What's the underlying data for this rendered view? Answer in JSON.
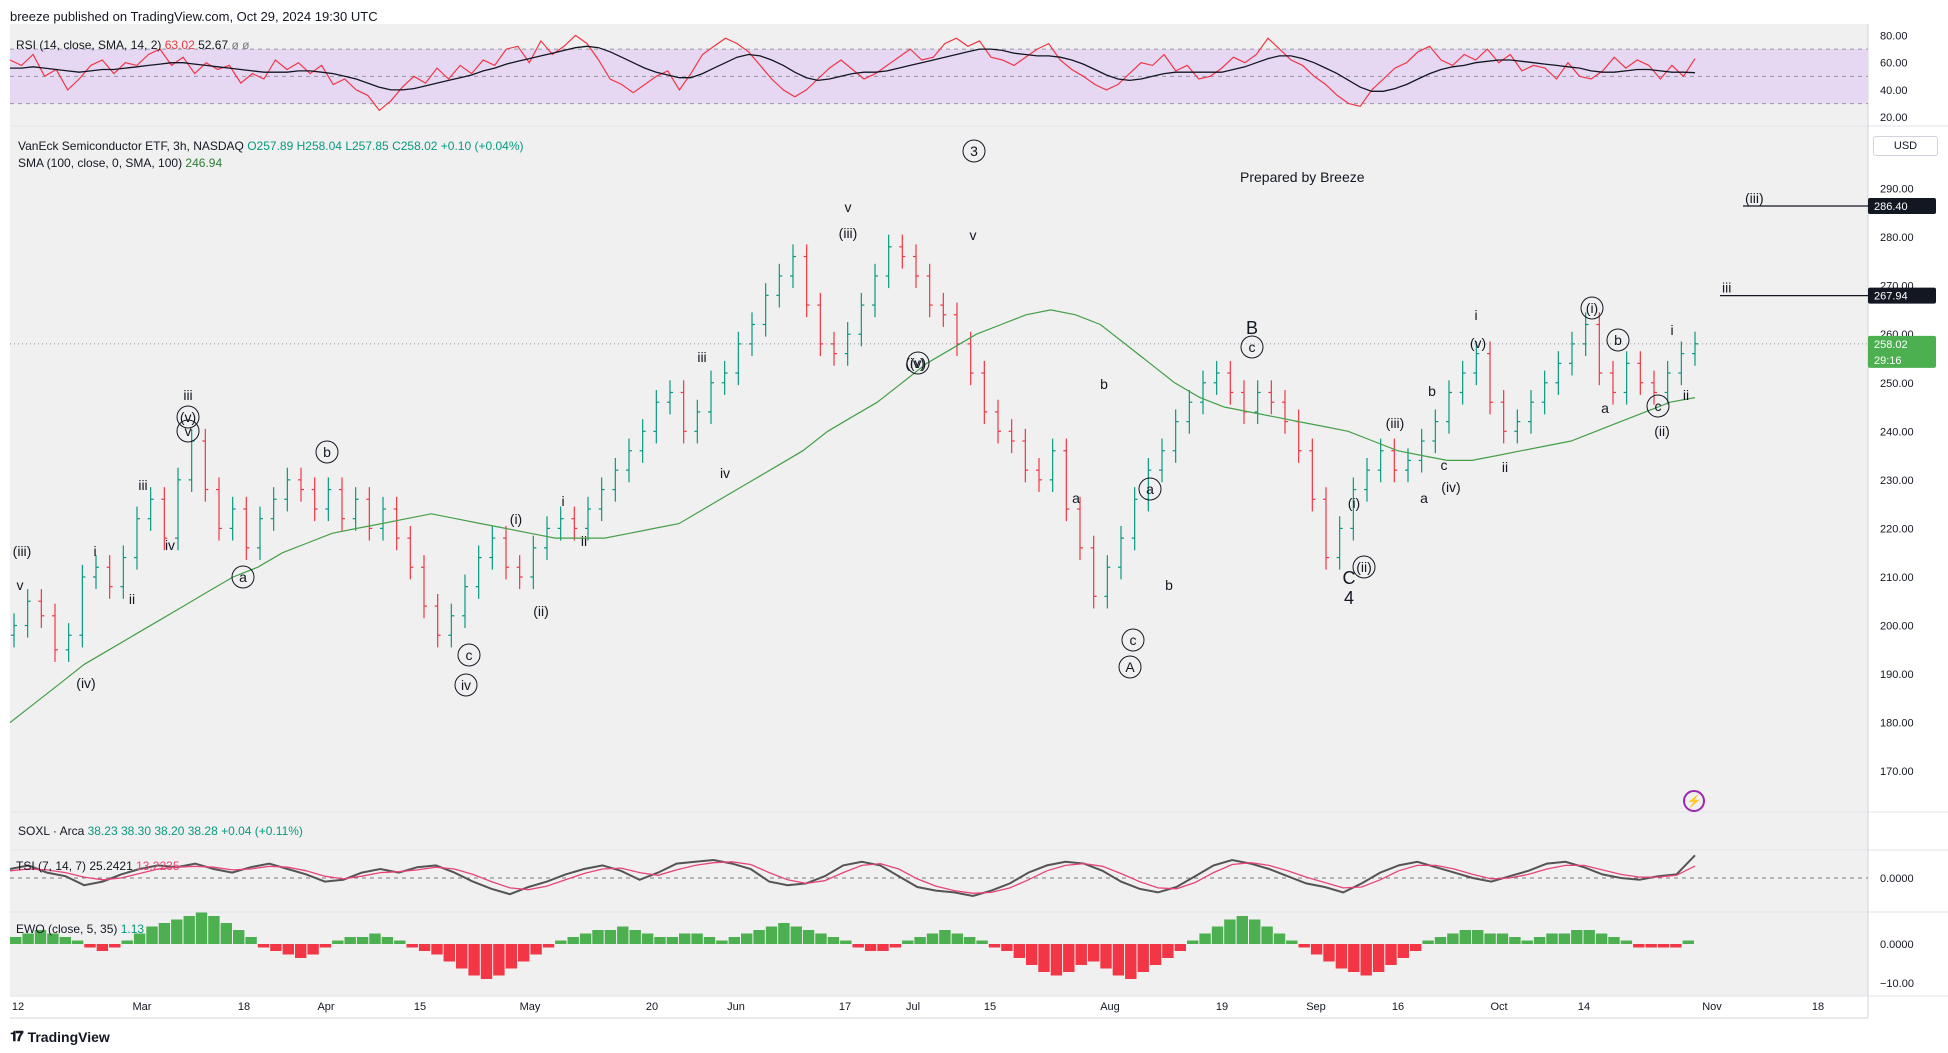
{
  "header": {
    "publisher_line": "breeze published on TradingView.com, Oct 29, 2024 19:30 UTC"
  },
  "rsi_legend": {
    "name": "RSI (14, close, SMA, 14, 2)",
    "v1": "63.02",
    "v2": "52.67",
    "icons": "ø ø"
  },
  "main_legend": {
    "symbol": "VanEck Semiconductor ETF, 3h, NASDAQ",
    "o": "O257.89",
    "h": "H258.04",
    "l": "L257.85",
    "c": "C258.02",
    "chg": "+0.10 (+0.04%)",
    "sma": "SMA (100, close, 0, SMA, 100)",
    "sma_val": "246.94"
  },
  "soxl_legend": {
    "name": "SOXL · Arca",
    "o": "38.23",
    "h": "38.30",
    "l": "38.20",
    "c": "38.28",
    "chg": "+0.04 (+0.11%)"
  },
  "tsi_legend": {
    "name": "TSI (7, 14, 7)",
    "v1": "25.2421",
    "v2": "13.2235"
  },
  "ewo_legend": {
    "name": "EWO (close, 5, 35)",
    "v1": "1.13"
  },
  "note": "Prepared by Breeze",
  "currency": "USD",
  "footer": {
    "brand": "TradingView"
  },
  "colors": {
    "up": "#089981",
    "down": "#f23645",
    "sma": "#43a047",
    "rsi": "#f23645",
    "rsi_ma": "#131722",
    "rsi_band": "#e6d7f3",
    "tsi": "#545454",
    "tsi_signal": "#e84478",
    "badge": "#131722",
    "last_badge": "#4caf50"
  },
  "chart_data": [
    {
      "type": "line",
      "title": "RSI (14, close, SMA, 14, 2)",
      "y_ticks": [
        "80.00",
        "60.00",
        "40.00",
        "20.00"
      ],
      "ylim": [
        15,
        84
      ],
      "bands": [
        70,
        50,
        30
      ],
      "last": {
        "rsi": 63.02,
        "ma": 52.67
      },
      "series": [
        {
          "name": "RSI",
          "values": [
            62,
            58,
            66,
            50,
            55,
            40,
            48,
            58,
            62,
            52,
            60,
            58,
            66,
            70,
            58,
            64,
            52,
            60,
            55,
            58,
            45,
            52,
            48,
            62,
            55,
            60,
            52,
            58,
            44,
            48,
            40,
            36,
            25,
            32,
            42,
            50,
            45,
            56,
            48,
            58,
            52,
            62,
            58,
            70,
            72,
            60,
            76,
            66,
            72,
            80,
            74,
            62,
            48,
            44,
            38,
            44,
            50,
            54,
            40,
            52,
            66,
            72,
            78,
            74,
            68,
            58,
            48,
            40,
            35,
            40,
            48,
            56,
            62,
            55,
            48,
            52,
            58,
            64,
            70,
            62,
            64,
            74,
            78,
            72,
            76,
            64,
            62,
            58,
            64,
            70,
            74,
            62,
            55,
            50,
            44,
            40,
            44,
            52,
            60,
            58,
            66,
            54,
            58,
            48,
            50,
            56,
            64,
            60,
            66,
            78,
            70,
            62,
            58,
            50,
            44,
            36,
            30,
            28,
            40,
            48,
            56,
            60,
            68,
            72,
            62,
            58,
            66,
            62,
            70,
            60,
            66,
            54,
            58,
            56,
            48,
            60,
            50,
            48,
            54,
            64,
            56,
            62,
            58,
            48,
            58,
            50,
            63
          ]
        },
        {
          "name": "RSI-based MA",
          "values": [
            56,
            56,
            57,
            56,
            55,
            54,
            53,
            54,
            55,
            55,
            56,
            57,
            58,
            59,
            60,
            60,
            59,
            58,
            57,
            56,
            55,
            54,
            53,
            53,
            53,
            54,
            54,
            53,
            52,
            50,
            48,
            45,
            42,
            40,
            40,
            41,
            43,
            45,
            47,
            49,
            51,
            54,
            56,
            59,
            61,
            63,
            65,
            67,
            69,
            71,
            72,
            71,
            68,
            64,
            60,
            56,
            53,
            51,
            49,
            49,
            52,
            56,
            60,
            64,
            66,
            65,
            62,
            58,
            53,
            49,
            47,
            48,
            50,
            52,
            53,
            53,
            54,
            56,
            58,
            60,
            62,
            64,
            66,
            68,
            70,
            70,
            69,
            67,
            66,
            65,
            65,
            64,
            62,
            59,
            55,
            51,
            48,
            47,
            48,
            50,
            52,
            53,
            53,
            53,
            53,
            53,
            55,
            57,
            60,
            63,
            65,
            65,
            63,
            60,
            56,
            52,
            47,
            42,
            39,
            39,
            41,
            44,
            48,
            52,
            55,
            57,
            58,
            60,
            61,
            62,
            62,
            61,
            60,
            59,
            58,
            57,
            56,
            54,
            53,
            53,
            54,
            55,
            55,
            54,
            53,
            53,
            52.67
          ]
        }
      ]
    },
    {
      "type": "candlestick",
      "title": "VanEck Semiconductor ETF, 3h, NASDAQ",
      "ylim": [
        162,
        300
      ],
      "y_ticks": [
        "290.00",
        "280.00",
        "270.00",
        "260.00",
        "250.00",
        "240.00",
        "230.00",
        "220.00",
        "210.00",
        "200.00",
        "190.00",
        "180.00",
        "170.00"
      ],
      "x_ticks": [
        "12",
        "Mar",
        "18",
        "Apr",
        "15",
        "May",
        "20",
        "Jun",
        "17",
        "Jul",
        "15",
        "Aug",
        "19",
        "Sep",
        "16",
        "Oct",
        "14",
        "Nov",
        "18"
      ],
      "close_series": {
        "name": "VanEck Semiconductor ETF",
        "values": [
          200,
          205,
          202,
          195,
          198,
          210,
          212,
          208,
          214,
          222,
          226,
          218,
          230,
          238,
          228,
          220,
          224,
          216,
          222,
          226,
          230,
          228,
          224,
          228,
          222,
          226,
          220,
          224,
          218,
          212,
          204,
          198,
          202,
          208,
          214,
          218,
          212,
          210,
          216,
          220,
          222,
          220,
          224,
          228,
          232,
          236,
          240,
          246,
          248,
          240,
          244,
          250,
          252,
          258,
          262,
          268,
          272,
          276,
          266,
          258,
          256,
          260,
          266,
          272,
          278,
          276,
          272,
          266,
          264,
          258,
          252,
          244,
          240,
          238,
          232,
          230,
          236,
          224,
          216,
          206,
          212,
          218,
          226,
          232,
          236,
          242,
          246,
          250,
          252,
          248,
          244,
          248,
          246,
          242,
          236,
          226,
          214,
          220,
          228,
          232,
          236,
          232,
          234,
          238,
          242,
          248,
          252,
          256,
          246,
          240,
          242,
          246,
          250,
          254,
          258,
          262,
          252,
          248,
          254,
          250,
          248,
          252,
          256,
          258.02
        ]
      },
      "sma_series": {
        "name": "SMA (100, close, 0, SMA, 100)",
        "values": [
          180,
          184,
          188,
          192,
          195,
          198,
          201,
          204,
          207,
          210,
          212,
          215,
          217,
          219,
          220,
          221,
          222,
          223,
          222,
          221,
          220,
          219,
          218,
          218,
          218,
          219,
          220,
          221,
          224,
          227,
          230,
          233,
          236,
          240,
          243,
          246,
          250,
          254,
          257,
          260,
          262,
          264,
          265,
          264,
          262,
          258,
          254,
          250,
          247,
          245,
          244,
          243,
          242,
          241,
          240,
          238,
          236,
          235,
          234,
          234,
          235,
          236,
          237,
          238,
          240,
          242,
          244,
          246,
          246.94
        ]
      },
      "price_labels": [
        {
          "text": "286.40",
          "value": 286.4,
          "label": "(iii)"
        },
        {
          "text": "267.94",
          "value": 267.94,
          "label": "iii"
        },
        {
          "text": "258.02",
          "value": 258.02,
          "sub": "29:16"
        }
      ],
      "wave_labels": [
        "(iii)",
        "v",
        "(iv)",
        "i",
        "ii",
        "iii",
        "iv",
        "v",
        "(v)",
        "iii",
        "a",
        "b",
        "(i)",
        "(ii)",
        "c",
        "iv",
        "i",
        "ii",
        "iii",
        "iv",
        "v",
        "(iii)",
        "(iv)",
        "(v)",
        "v",
        "3",
        "b",
        "a",
        "A",
        "c",
        "b",
        "a",
        "(i)",
        "(ii)",
        "B",
        "c",
        "C",
        "4",
        "(iii)",
        "b",
        "a",
        "c",
        "(iv)",
        "(v)",
        "i",
        "ii",
        "(i)",
        "b",
        "a",
        "c",
        "(ii)",
        "i",
        "ii"
      ]
    },
    {
      "type": "line",
      "title": "TSI (7, 14, 7)",
      "y_ticks": [
        "0.0000"
      ],
      "series": [
        {
          "name": "TSI",
          "values": [
            10,
            14,
            6,
            2,
            -8,
            -4,
            4,
            10,
            14,
            12,
            16,
            10,
            6,
            12,
            16,
            10,
            4,
            -4,
            -2,
            6,
            10,
            6,
            12,
            14,
            6,
            -4,
            -12,
            -18,
            -10,
            -4,
            4,
            10,
            14,
            8,
            -2,
            6,
            16,
            18,
            20,
            16,
            10,
            -4,
            -8,
            -6,
            2,
            14,
            18,
            14,
            2,
            -10,
            -14,
            -16,
            -20,
            -14,
            -6,
            6,
            14,
            18,
            16,
            8,
            -4,
            -12,
            -16,
            -10,
            2,
            14,
            20,
            16,
            10,
            2,
            -6,
            -10,
            -16,
            -6,
            6,
            14,
            18,
            12,
            6,
            0,
            -4,
            2,
            8,
            16,
            18,
            12,
            4,
            0,
            -2,
            2,
            4,
            25.24
          ]
        },
        {
          "name": "Signal",
          "values": [
            8,
            10,
            9,
            6,
            1,
            -2,
            0,
            5,
            10,
            12,
            13,
            12,
            9,
            10,
            13,
            12,
            8,
            2,
            -1,
            2,
            6,
            7,
            9,
            12,
            10,
            4,
            -4,
            -11,
            -13,
            -9,
            -2,
            5,
            10,
            11,
            6,
            3,
            9,
            14,
            17,
            18,
            15,
            6,
            -2,
            -6,
            -3,
            6,
            14,
            16,
            10,
            -1,
            -9,
            -14,
            -17,
            -16,
            -11,
            -2,
            8,
            14,
            16,
            13,
            5,
            -4,
            -11,
            -12,
            -5,
            6,
            15,
            17,
            14,
            8,
            1,
            -5,
            -11,
            -10,
            -2,
            8,
            14,
            14,
            10,
            4,
            -1,
            0,
            4,
            10,
            14,
            14,
            9,
            4,
            1,
            1,
            3,
            13.22
          ]
        }
      ]
    },
    {
      "type": "bar",
      "title": "EWO (close, 5, 35)",
      "y_ticks": [
        "0.0000",
        "−10.00"
      ],
      "series": [
        {
          "name": "EWO",
          "values": [
            2,
            3,
            4,
            3,
            2,
            1,
            -1,
            -2,
            -1,
            1,
            3,
            5,
            6,
            7,
            8,
            9,
            8,
            6,
            4,
            2,
            -1,
            -2,
            -3,
            -4,
            -3,
            -1,
            1,
            2,
            2,
            3,
            2,
            1,
            -1,
            -2,
            -3,
            -5,
            -7,
            -9,
            -10,
            -9,
            -7,
            -5,
            -3,
            -1,
            1,
            2,
            3,
            4,
            4,
            5,
            4,
            3,
            2,
            2,
            3,
            3,
            2,
            1,
            2,
            3,
            4,
            5,
            6,
            5,
            4,
            3,
            2,
            1,
            -1,
            -2,
            -2,
            -1,
            1,
            2,
            3,
            4,
            3,
            2,
            1,
            -1,
            -2,
            -4,
            -6,
            -8,
            -9,
            -8,
            -6,
            -5,
            -7,
            -9,
            -10,
            -8,
            -6,
            -4,
            -2,
            1,
            3,
            5,
            7,
            8,
            7,
            5,
            3,
            1,
            -1,
            -3,
            -5,
            -7,
            -8,
            -9,
            -8,
            -6,
            -4,
            -2,
            1,
            2,
            3,
            4,
            4,
            3,
            3,
            2,
            1,
            2,
            3,
            3,
            4,
            4,
            3,
            2,
            1,
            -1,
            -1,
            -1,
            -1,
            1
          ]
        }
      ]
    }
  ]
}
